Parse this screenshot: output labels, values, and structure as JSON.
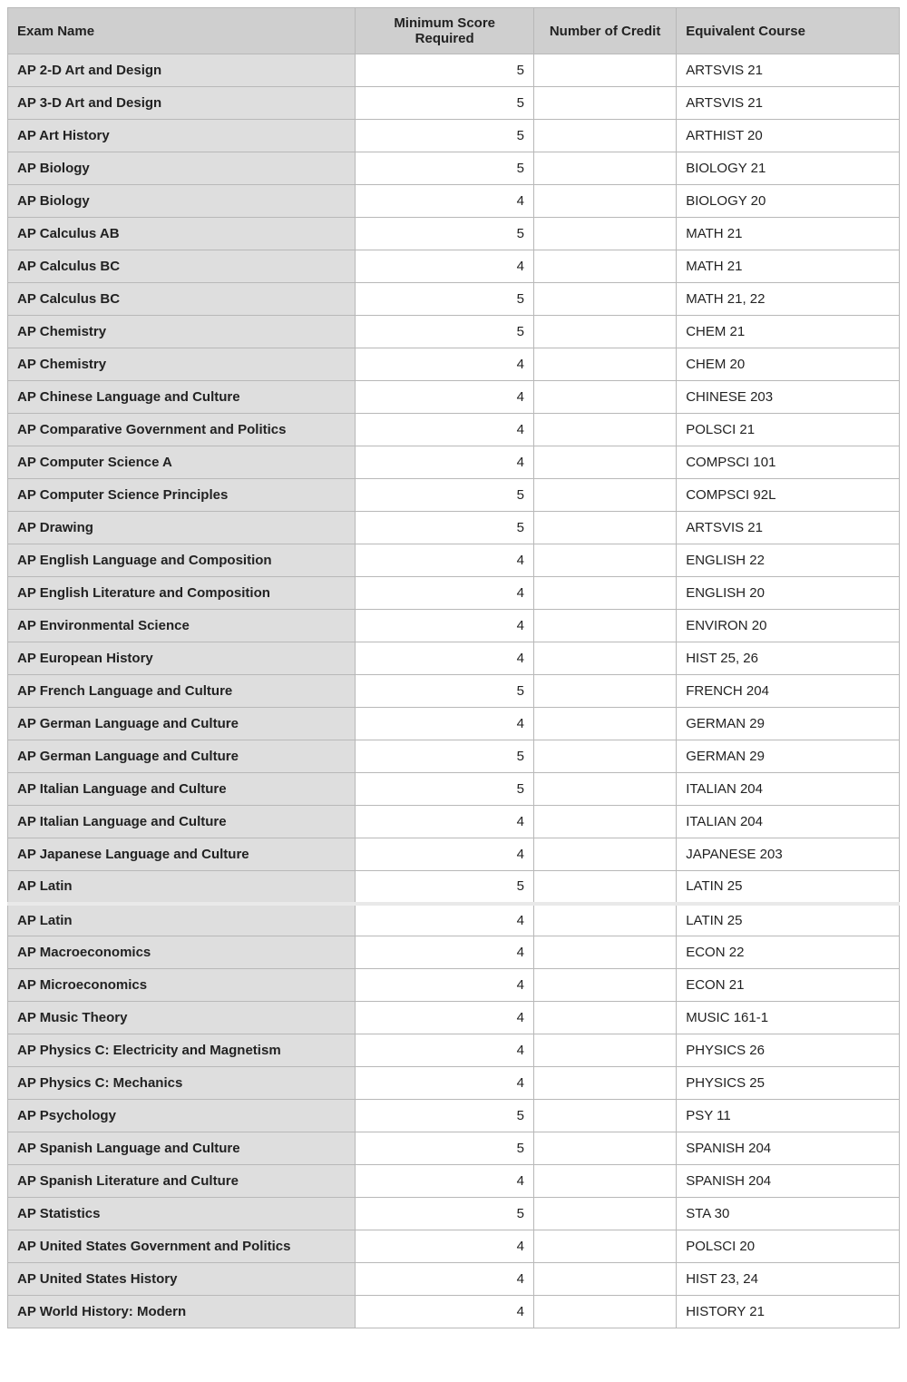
{
  "table": {
    "columns": {
      "exam": "Exam Name",
      "score": "Minimum Score Required",
      "credit": "Number of Credit",
      "equiv": "Equivalent Course"
    },
    "colors": {
      "header_bg": "#cfcfcf",
      "exam_col_bg": "#dedede",
      "border": "#b8b8b8",
      "text": "#222222",
      "background": "#ffffff"
    },
    "font_size_pt": 11,
    "rows": [
      {
        "exam": "AP 2-D Art and Design",
        "score": "5",
        "credit": "",
        "equiv": "ARTSVIS 21"
      },
      {
        "exam": "AP 3-D Art and Design",
        "score": "5",
        "credit": "",
        "equiv": "ARTSVIS 21"
      },
      {
        "exam": "AP Art History",
        "score": "5",
        "credit": "",
        "equiv": "ARTHIST 20"
      },
      {
        "exam": "AP Biology",
        "score": "5",
        "credit": "",
        "equiv": "BIOLOGY 21"
      },
      {
        "exam": "AP Biology",
        "score": "4",
        "credit": "",
        "equiv": "BIOLOGY 20"
      },
      {
        "exam": "AP Calculus AB",
        "score": "5",
        "credit": "",
        "equiv": "MATH 21"
      },
      {
        "exam": "AP Calculus BC",
        "score": "4",
        "credit": "",
        "equiv": "MATH 21"
      },
      {
        "exam": "AP Calculus BC",
        "score": "5",
        "credit": "",
        "equiv": "MATH 21, 22"
      },
      {
        "exam": "AP Chemistry",
        "score": "5",
        "credit": "",
        "equiv": "CHEM 21"
      },
      {
        "exam": "AP Chemistry",
        "score": "4",
        "credit": "",
        "equiv": "CHEM 20"
      },
      {
        "exam": "AP Chinese Language and Culture",
        "score": "4",
        "credit": "",
        "equiv": "CHINESE 203"
      },
      {
        "exam": "AP Comparative Government and Politics",
        "score": "4",
        "credit": "",
        "equiv": "POLSCI 21"
      },
      {
        "exam": "AP Computer Science A",
        "score": "4",
        "credit": "",
        "equiv": "COMPSCI 101"
      },
      {
        "exam": "AP Computer Science Principles",
        "score": "5",
        "credit": "",
        "equiv": "COMPSCI 92L"
      },
      {
        "exam": "AP Drawing",
        "score": "5",
        "credit": "",
        "equiv": "ARTSVIS 21"
      },
      {
        "exam": "AP English Language and Composition",
        "score": "4",
        "credit": "",
        "equiv": "ENGLISH 22"
      },
      {
        "exam": "AP English Literature and Composition",
        "score": "4",
        "credit": "",
        "equiv": "ENGLISH 20"
      },
      {
        "exam": "AP Environmental Science",
        "score": "4",
        "credit": "",
        "equiv": "ENVIRON 20"
      },
      {
        "exam": "AP European History",
        "score": "4",
        "credit": "",
        "equiv": "HIST 25, 26"
      },
      {
        "exam": "AP French Language and Culture",
        "score": "5",
        "credit": "",
        "equiv": "FRENCH 204"
      },
      {
        "exam": "AP German Language and Culture",
        "score": "4",
        "credit": "",
        "equiv": "GERMAN 29"
      },
      {
        "exam": "AP German Language and Culture",
        "score": "5",
        "credit": "",
        "equiv": "GERMAN 29"
      },
      {
        "exam": "AP Italian Language and Culture",
        "score": "5",
        "credit": "",
        "equiv": "ITALIAN 204"
      },
      {
        "exam": "AP Italian Language and Culture",
        "score": "4",
        "credit": "",
        "equiv": "ITALIAN 204"
      },
      {
        "exam": "AP Japanese Language and Culture",
        "score": "4",
        "credit": "",
        "equiv": "JAPANESE 203"
      },
      {
        "exam": "AP Latin",
        "score": "5",
        "credit": "",
        "equiv": "LATIN 25",
        "section_break": true
      },
      {
        "exam": "AP Latin",
        "score": "4",
        "credit": "",
        "equiv": "LATIN 25"
      },
      {
        "exam": "AP Macroeconomics",
        "score": "4",
        "credit": "",
        "equiv": "ECON 22"
      },
      {
        "exam": "AP Microeconomics",
        "score": "4",
        "credit": "",
        "equiv": "ECON 21"
      },
      {
        "exam": "AP Music Theory",
        "score": "4",
        "credit": "",
        "equiv": "MUSIC 161-1"
      },
      {
        "exam": "AP Physics C: Electricity and Magnetism",
        "score": "4",
        "credit": "",
        "equiv": "PHYSICS 26"
      },
      {
        "exam": "AP Physics C: Mechanics",
        "score": "4",
        "credit": "",
        "equiv": "PHYSICS 25"
      },
      {
        "exam": "AP Psychology",
        "score": "5",
        "credit": "",
        "equiv": "PSY 11"
      },
      {
        "exam": "AP Spanish Language and Culture",
        "score": "5",
        "credit": "",
        "equiv": "SPANISH 204"
      },
      {
        "exam": "AP Spanish Literature and Culture",
        "score": "4",
        "credit": "",
        "equiv": "SPANISH 204"
      },
      {
        "exam": "AP Statistics",
        "score": "5",
        "credit": "",
        "equiv": "STA 30"
      },
      {
        "exam": "AP United States Government and Politics",
        "score": "4",
        "credit": "",
        "equiv": "POLSCI 20"
      },
      {
        "exam": "AP United States History",
        "score": "4",
        "credit": "",
        "equiv": "HIST 23, 24"
      },
      {
        "exam": "AP World History: Modern",
        "score": "4",
        "credit": "",
        "equiv": "HISTORY 21"
      }
    ]
  }
}
